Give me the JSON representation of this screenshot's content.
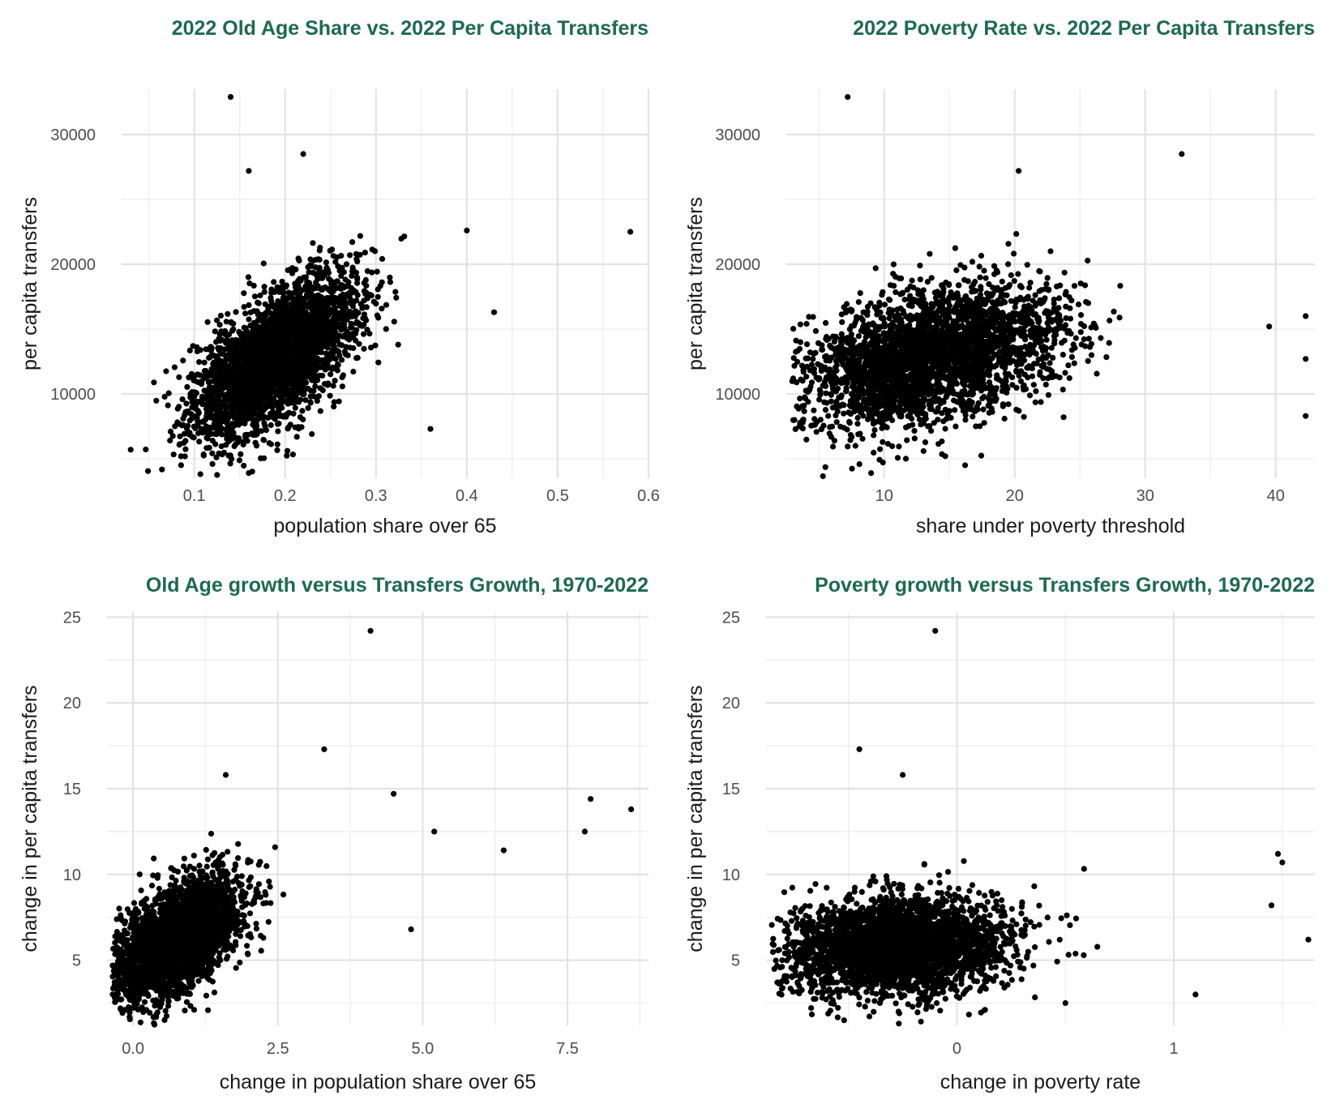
{
  "chart_data": [
    {
      "type": "scatter",
      "title": "2022 Old Age Share vs. 2022 Per Capita Transfers",
      "xlabel": "population share over 65",
      "ylabel": "per capita transfers",
      "xlim": [
        0.02,
        0.6
      ],
      "ylim": [
        3500,
        33500
      ],
      "xticks": [
        0.1,
        0.2,
        0.3,
        0.4,
        0.5,
        0.6
      ],
      "xtick_labels": [
        "0.1",
        "0.2",
        "0.3",
        "0.4",
        "0.5",
        "0.6"
      ],
      "yticks": [
        10000,
        20000,
        30000
      ],
      "ytick_labels": [
        "10000",
        "20000",
        "30000"
      ],
      "xminor": [
        0.05,
        0.15,
        0.25,
        0.35,
        0.45,
        0.55
      ],
      "yminor": [
        5000,
        15000,
        25000
      ],
      "grid": true,
      "points_count_approx": 3100,
      "notable_points": [
        [
          0.14,
          32900
        ],
        [
          0.22,
          28500
        ],
        [
          0.16,
          27200
        ],
        [
          0.58,
          22500
        ],
        [
          0.43,
          16300
        ],
        [
          0.03,
          5700
        ],
        [
          0.16,
          3900
        ],
        [
          0.12,
          4600
        ],
        [
          0.36,
          7300
        ],
        [
          0.4,
          22600
        ]
      ],
      "cloud": {
        "x_mean": 0.19,
        "x_sd": 0.045,
        "y_mean": 12800,
        "y_sd": 2400,
        "slope": 42000
      }
    },
    {
      "type": "scatter",
      "title": "2022 Poverty Rate vs. 2022 Per Capita Transfers",
      "xlabel": "share under poverty threshold",
      "ylabel": "per capita transfers",
      "xlim": [
        2.5,
        43
      ],
      "ylim": [
        3500,
        33500
      ],
      "xticks": [
        10,
        20,
        30,
        40
      ],
      "xtick_labels": [
        "10",
        "20",
        "30",
        "40"
      ],
      "yticks": [
        10000,
        20000,
        30000
      ],
      "ytick_labels": [
        "10000",
        "20000",
        "30000"
      ],
      "xminor": [
        5,
        15,
        25,
        35
      ],
      "yminor": [
        5000,
        15000,
        25000
      ],
      "grid": true,
      "points_count_approx": 3100,
      "notable_points": [
        [
          7.2,
          32900
        ],
        [
          32.8,
          28500
        ],
        [
          20.3,
          27200
        ],
        [
          42.3,
          16000
        ],
        [
          42.3,
          12700
        ],
        [
          42.3,
          8300
        ],
        [
          39.5,
          15200
        ],
        [
          16.2,
          4500
        ],
        [
          9,
          3900
        ],
        [
          3.5,
          7500
        ]
      ],
      "cloud": {
        "x_mean": 13.5,
        "x_sd": 5.0,
        "y_mean": 12800,
        "y_sd": 2500,
        "slope": 220
      }
    },
    {
      "type": "scatter",
      "title": "Old Age growth versus Transfers Growth, 1970-2022",
      "xlabel": "change in population share over 65",
      "ylabel": "change in per capita transfers",
      "xlim": [
        -0.45,
        8.9
      ],
      "ylim": [
        1.2,
        25.3
      ],
      "xticks": [
        0.0,
        2.5,
        5.0,
        7.5
      ],
      "xtick_labels": [
        "0.0",
        "2.5",
        "5.0",
        "7.5"
      ],
      "yticks": [
        5,
        10,
        15,
        20,
        25
      ],
      "ytick_labels": [
        "5",
        "10",
        "15",
        "20",
        "25"
      ],
      "xminor": [
        1.25,
        3.75,
        6.25,
        8.75
      ],
      "yminor": [
        2.5,
        7.5,
        12.5,
        17.5,
        22.5
      ],
      "grid": true,
      "points_count_approx": 3100,
      "notable_points": [
        [
          4.1,
          24.2
        ],
        [
          3.3,
          17.3
        ],
        [
          1.6,
          15.8
        ],
        [
          4.5,
          14.7
        ],
        [
          7.9,
          14.4
        ],
        [
          8.6,
          13.8
        ],
        [
          7.8,
          12.5
        ],
        [
          5.2,
          12.5
        ],
        [
          6.4,
          11.4
        ],
        [
          4.8,
          6.8
        ],
        [
          -0.3,
          2.8
        ]
      ],
      "cloud": {
        "x_mean": 0.75,
        "x_sd": 0.55,
        "y_mean": 6.2,
        "y_sd": 1.5,
        "slope": 1.6
      }
    },
    {
      "type": "scatter",
      "title": "Poverty growth versus Transfers Growth, 1970-2022",
      "xlabel": "change in poverty rate",
      "ylabel": "change in per capita transfers",
      "xlim": [
        -0.88,
        1.65
      ],
      "ylim": [
        1.2,
        25.3
      ],
      "xticks": [
        0,
        1
      ],
      "xtick_labels": [
        "0",
        "1"
      ],
      "yticks": [
        5,
        10,
        15,
        20,
        25
      ],
      "ytick_labels": [
        "5",
        "10",
        "15",
        "20",
        "25"
      ],
      "xminor": [
        -0.5,
        0.5,
        1.5
      ],
      "yminor": [
        2.5,
        7.5,
        12.5,
        17.5,
        22.5
      ],
      "grid": true,
      "points_count_approx": 3100,
      "notable_points": [
        [
          -0.1,
          24.2
        ],
        [
          -0.45,
          17.3
        ],
        [
          -0.25,
          15.8
        ],
        [
          1.48,
          11.2
        ],
        [
          1.5,
          10.7
        ],
        [
          1.62,
          6.2
        ],
        [
          1.45,
          8.2
        ],
        [
          1.1,
          3.0
        ],
        [
          0.5,
          2.5
        ],
        [
          -0.52,
          1.5
        ]
      ],
      "cloud": {
        "x_mean": -0.28,
        "x_sd": 0.26,
        "y_mean": 5.8,
        "y_sd": 1.4,
        "slope": 0.6
      }
    }
  ]
}
